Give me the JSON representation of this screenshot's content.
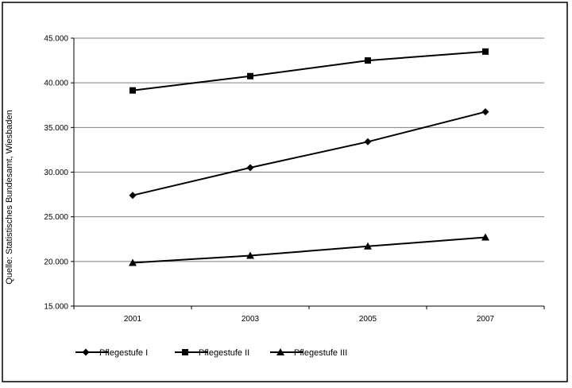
{
  "source_note": "Quelle: Statistisches Bundesamt, Wiesbaden",
  "chart_data": {
    "type": "line",
    "title": "",
    "xlabel": "",
    "ylabel": "",
    "categories": [
      "2001",
      "2003",
      "2005",
      "2007"
    ],
    "y_ticks": [
      "15.000",
      "20.000",
      "25.000",
      "30.000",
      "35.000",
      "40.000",
      "45.000"
    ],
    "ylim": [
      15000,
      45000
    ],
    "grid": "horizontal",
    "legend_position": "bottom",
    "series": [
      {
        "name": "Pflegestufe I",
        "marker": "diamond",
        "color": "#000000",
        "values": [
          27400,
          30500,
          33400,
          36750
        ]
      },
      {
        "name": "Pflegestufe II",
        "marker": "square",
        "color": "#000000",
        "values": [
          39150,
          40750,
          42500,
          43500
        ]
      },
      {
        "name": "Pflegestufe III",
        "marker": "triangle",
        "color": "#000000",
        "values": [
          19850,
          20650,
          21700,
          22700
        ]
      }
    ]
  }
}
